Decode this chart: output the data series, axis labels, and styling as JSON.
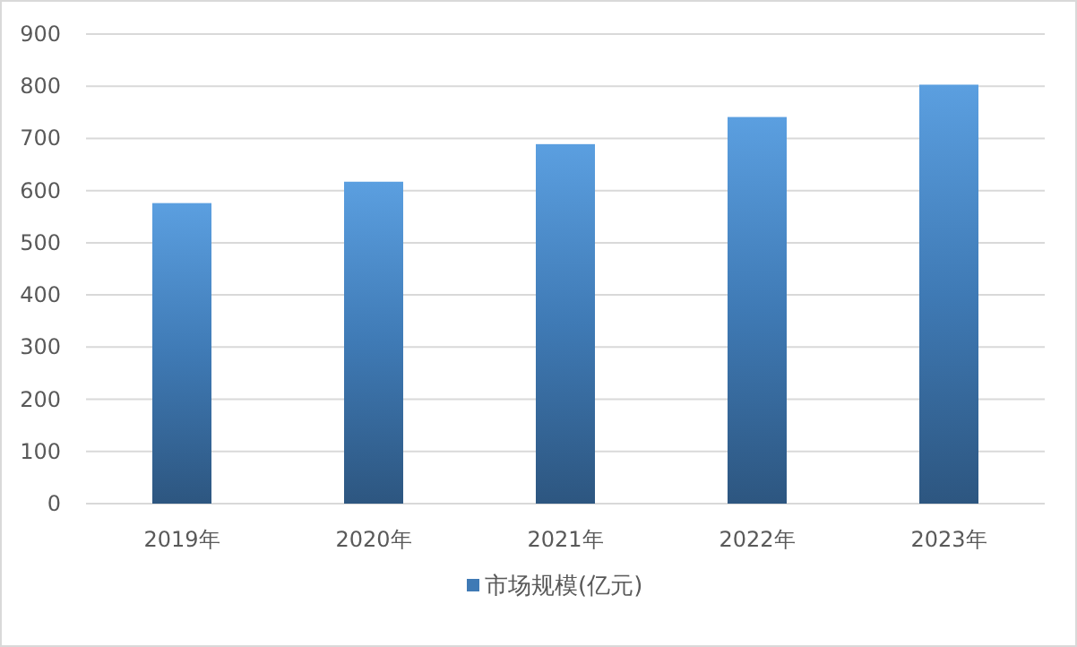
{
  "chart_data": {
    "type": "bar",
    "categories": [
      "2019年",
      "2020年",
      "2021年",
      "2022年",
      "2023年"
    ],
    "series": [
      {
        "name": "市场规模(亿元)",
        "color": "#3f7ab5",
        "values": [
          576,
          617,
          689,
          741,
          803
        ]
      }
    ],
    "ylim": [
      0,
      900
    ],
    "yticks": [
      0,
      100,
      200,
      300,
      400,
      500,
      600,
      700,
      800,
      900
    ],
    "grid": "y",
    "legend": "bottom"
  }
}
